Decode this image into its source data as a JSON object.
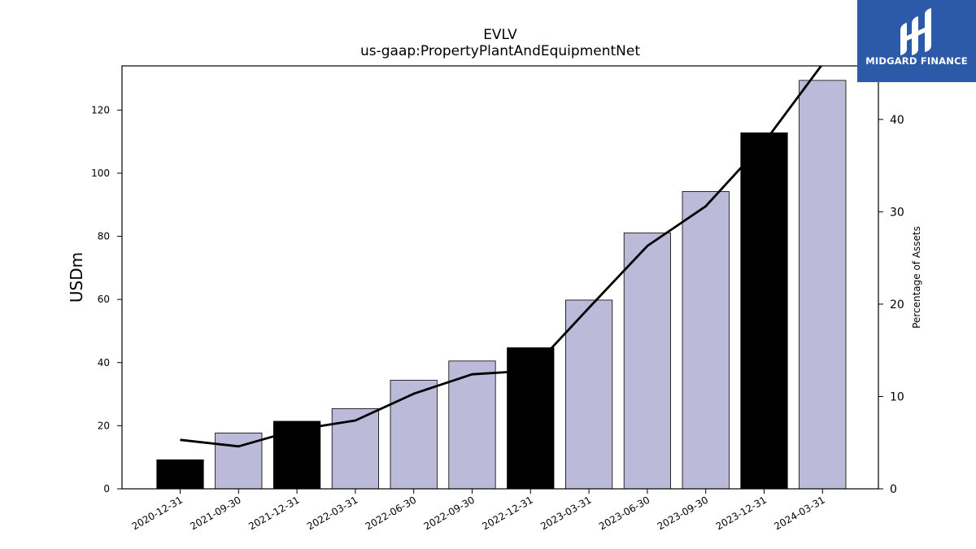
{
  "chart_data": {
    "type": "bar",
    "title": "EVLV",
    "subtitle": "us-gaap:PropertyPlantAndEquipmentNet",
    "ylabel": "USDm",
    "y2label": "Percentage of Assets",
    "categories": [
      "2020-12-31",
      "2021-09-30",
      "2021-12-31",
      "2022-03-31",
      "2022-06-30",
      "2022-09-30",
      "2022-12-31",
      "2023-03-31",
      "2023-06-30",
      "2023-09-30",
      "2023-12-31",
      "2024-03-31"
    ],
    "series": [
      {
        "values": [
          9.2,
          17.7,
          21.4,
          25.4,
          34.4,
          40.5,
          44.7,
          59.8,
          81.1,
          94.2,
          112.8,
          129.4
        ]
      },
      {
        "values": [
          5.3,
          4.6,
          6.4,
          7.4,
          10.3,
          12.4,
          12.8,
          19.6,
          26.3,
          30.6,
          37.5,
          46.0
        ],
        "axis": "right"
      }
    ],
    "bar_colors": [
      "#000000",
      "#bcbad9",
      "#000000",
      "#bcbad9",
      "#bcbad9",
      "#bcbad9",
      "#000000",
      "#bcbad9",
      "#bcbad9",
      "#bcbad9",
      "#000000",
      "#bcbad9"
    ],
    "ylim": [
      0,
      134
    ],
    "y2lim": [
      0,
      45.8
    ],
    "yticks": [
      0,
      20,
      40,
      60,
      80,
      100,
      120
    ],
    "y2ticks": [
      0,
      10,
      20,
      30,
      40
    ],
    "grid": false
  },
  "logo": {
    "text": "MIDGARD FINANCE",
    "background": "#2c5aa8",
    "icon": "midgard-logo-icon"
  }
}
